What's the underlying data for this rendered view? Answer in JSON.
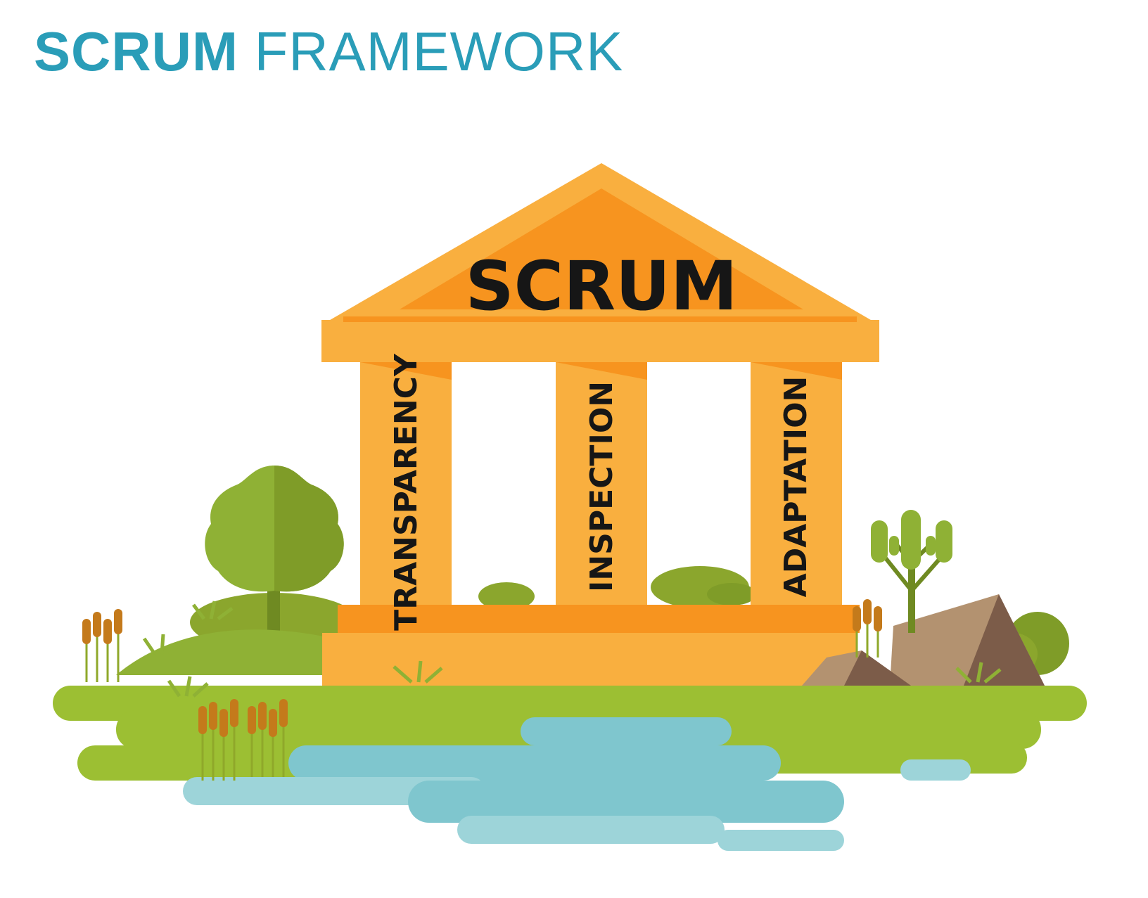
{
  "title": {
    "bold": "SCRUM",
    "light": "FRAMEWORK"
  },
  "temple": {
    "roof_label": "SCRUM",
    "pillars": [
      "TRANSPARENCY",
      "INSPECTION",
      "ADAPTATION"
    ]
  },
  "colors": {
    "title": "#2a9db8",
    "temple_light": "#f9af3f",
    "temple_dark": "#f7941f",
    "grass": "#9cbf33",
    "water": "#7fc6ce",
    "tree": "#8ba62d",
    "rock": "#7c5c49"
  }
}
